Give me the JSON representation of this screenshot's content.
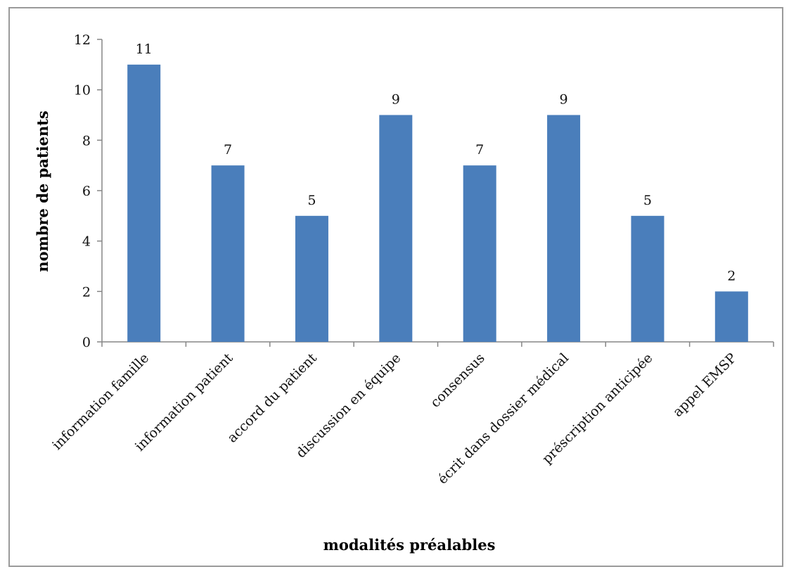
{
  "chart_data": {
    "type": "bar",
    "categories": [
      "information famille",
      "information patient",
      "accord du patient",
      "discussion en équipe",
      "consensus",
      "écrit dans dossier médical",
      "préscription anticipée",
      "appel EMSP"
    ],
    "values": [
      11,
      7,
      5,
      9,
      7,
      9,
      5,
      2
    ],
    "data_labels": [
      "11",
      "7",
      "5",
      "9",
      "7",
      "9",
      "5",
      "2"
    ],
    "xlabel": "modalités préalables",
    "ylabel": "nombre de patients",
    "ylim": [
      0,
      12
    ],
    "yticks": [
      0,
      2,
      4,
      6,
      8,
      10,
      12
    ],
    "ytick_labels": [
      "0",
      "2",
      "4",
      "6",
      "8",
      "10",
      "12"
    ],
    "grid": false,
    "legend": "none",
    "bar_color": "#4a7ebb"
  }
}
